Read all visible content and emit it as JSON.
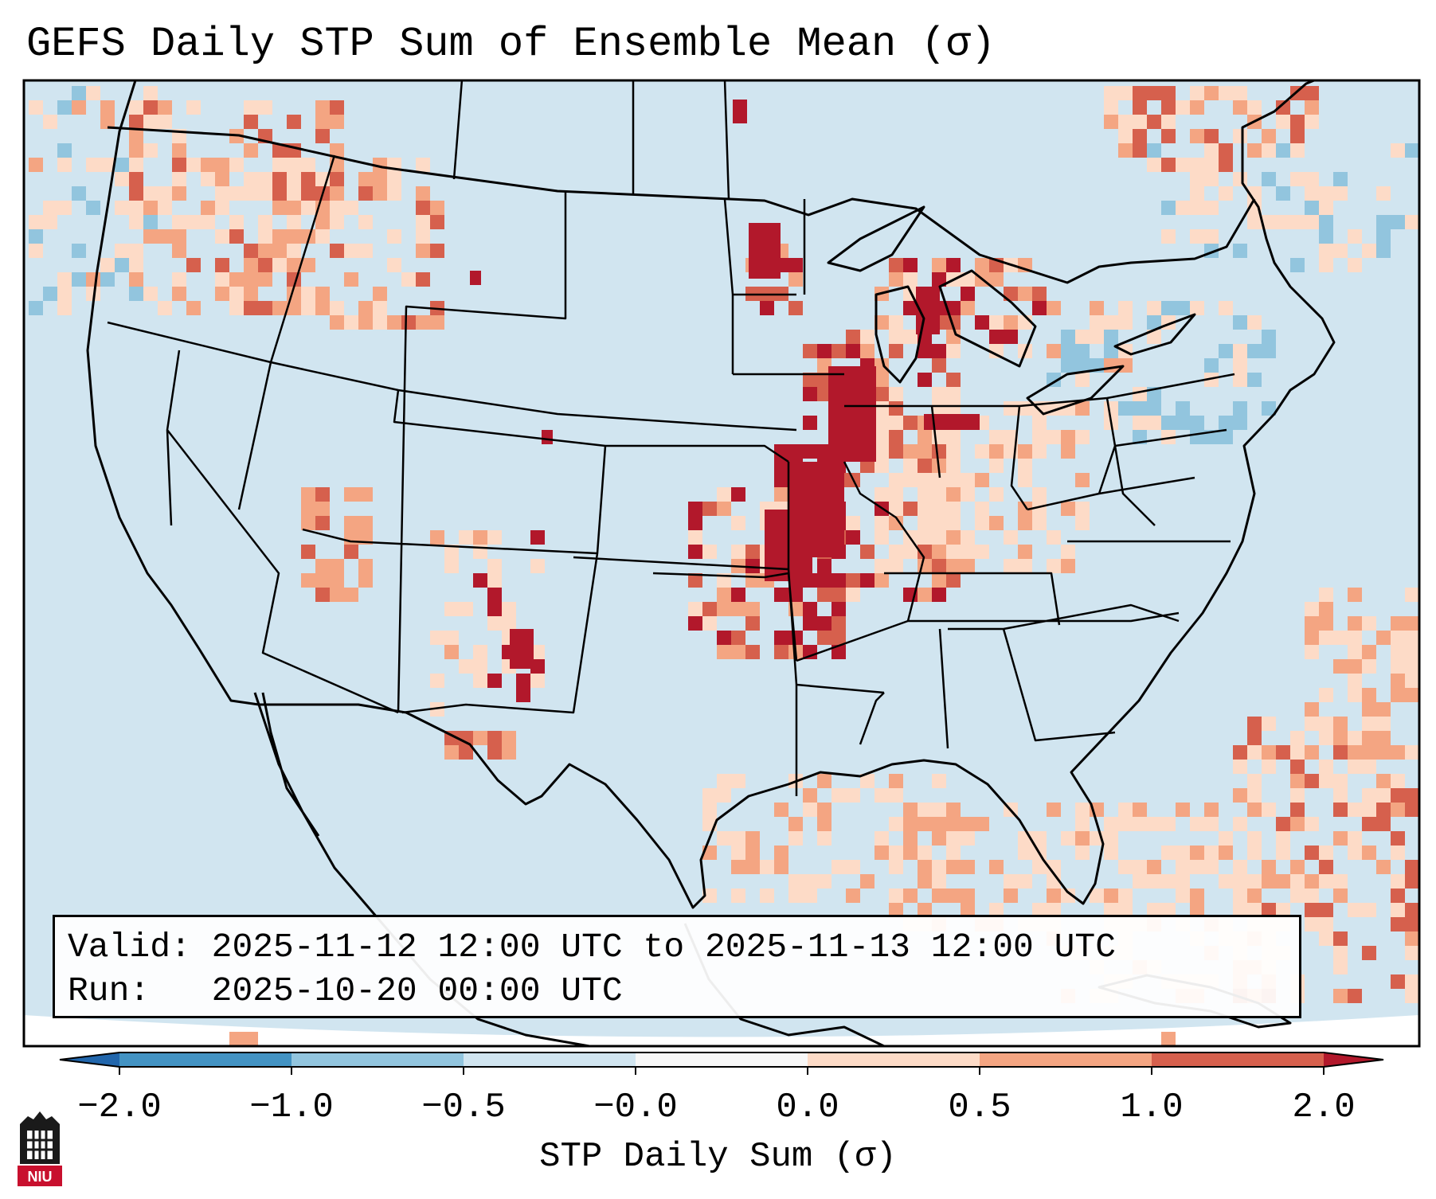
{
  "title": "GEFS Daily STP Sum of Ensemble Mean (σ)",
  "info": {
    "valid_label": "Valid:",
    "valid_text": "2025-11-12 12:00 UTC to 2025-11-13 12:00 UTC",
    "run_label": "Run:",
    "run_text": "2025-10-20 00:00 UTC"
  },
  "colorbar": {
    "label": "STP Daily Sum (σ)",
    "ticks": [
      "−2.0",
      "−1.0",
      "−0.5",
      "−0.0",
      "0.0",
      "0.5",
      "1.0",
      "2.0"
    ],
    "bins": [
      {
        "from": -2.0,
        "to": -1.0,
        "color": "#4393c3"
      },
      {
        "from": -1.0,
        "to": -0.5,
        "color": "#92c5de"
      },
      {
        "from": -0.5,
        "to": -0.0,
        "color": "#d1e5f0"
      },
      {
        "from": -0.0,
        "to": 0.0,
        "color": "#f7f7f7"
      },
      {
        "from": 0.0,
        "to": 0.5,
        "color": "#fddbc7"
      },
      {
        "from": 0.5,
        "to": 1.0,
        "color": "#f4a582"
      },
      {
        "from": 1.0,
        "to": 2.0,
        "color": "#d6604d"
      }
    ],
    "under_color": "#2166ac",
    "over_color": "#b2182b"
  },
  "map": {
    "background_color": "#d1e5f0",
    "coastline_color": "#000000"
  },
  "logo": {
    "text": "NIU",
    "color": "#c8102e"
  }
}
